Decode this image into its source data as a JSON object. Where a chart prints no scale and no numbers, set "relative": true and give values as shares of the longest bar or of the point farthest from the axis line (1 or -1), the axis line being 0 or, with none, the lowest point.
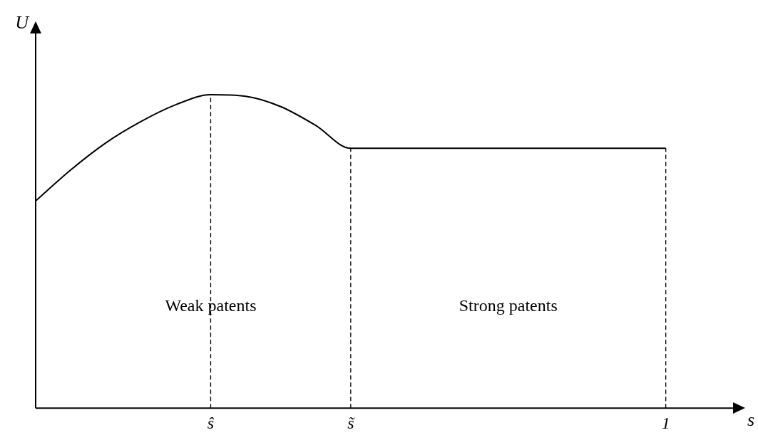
{
  "chart_data": {
    "type": "line",
    "relative": true,
    "xlabel": "s",
    "ylabel": "U",
    "categories": [
      null,
      null,
      null,
      null,
      null,
      "ŝ",
      null,
      null,
      null,
      "s̃",
      null,
      null,
      null,
      null,
      null,
      null,
      null,
      null,
      "1"
    ],
    "series": [
      {
        "color": "#000000",
        "values": [
          0.661,
          0.76,
          0.846,
          0.914,
          0.968,
          1,
          0.995,
          0.962,
          0.902,
          0.829,
          0.829,
          0.829,
          0.829,
          0.829,
          0.829,
          0.829,
          0.829,
          0.829,
          0.829
        ]
      }
    ],
    "ref_lines": [
      {
        "axis": "x",
        "value": "ŝ",
        "line_style": "dashed",
        "color": "#000000"
      },
      {
        "axis": "x",
        "value": "s̃",
        "line_style": "dashed",
        "color": "#000000"
      },
      {
        "axis": "x",
        "value": "1",
        "line_style": "dashed",
        "color": "#000000"
      }
    ],
    "annotations": [
      "Weak patents",
      "Strong patents"
    ],
    "grid": false,
    "legend": false,
    "marker": "none",
    "line_style": "solid"
  }
}
